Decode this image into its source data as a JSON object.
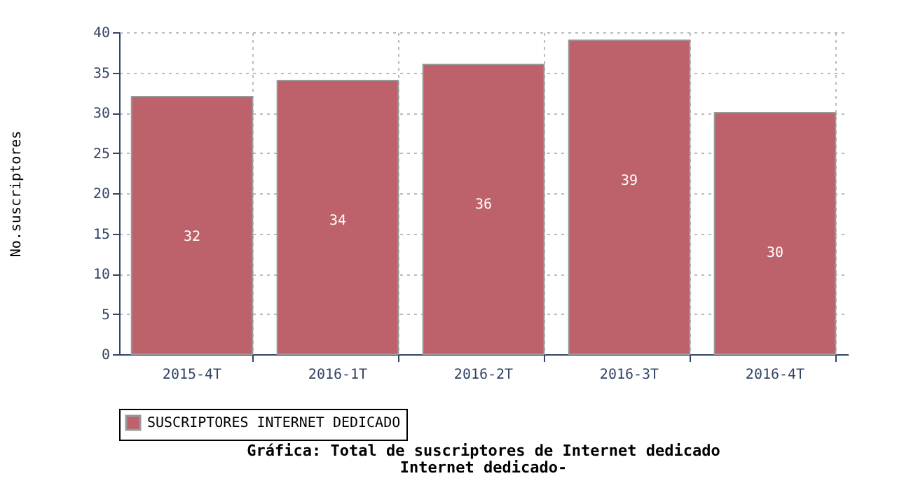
{
  "chart_data": {
    "type": "bar",
    "title": "Gráfica: Total de suscriptores de Internet dedicado",
    "subtitle": "Internet dedicado-",
    "ylabel": "No.suscriptores",
    "categories": [
      "2015-4T",
      "2016-1T",
      "2016-2T",
      "2016-3T",
      "2016-4T"
    ],
    "series": [
      {
        "name": "SUSCRIPTORES INTERNET DEDICADO",
        "color": "#bd616b",
        "values": [
          32,
          34,
          36,
          39,
          30
        ]
      }
    ],
    "ylim": [
      0,
      40
    ],
    "yticks": [
      0,
      5,
      10,
      15,
      20,
      25,
      30,
      35,
      40
    ],
    "grid": true,
    "legend": "bottom",
    "data_labels": true
  }
}
